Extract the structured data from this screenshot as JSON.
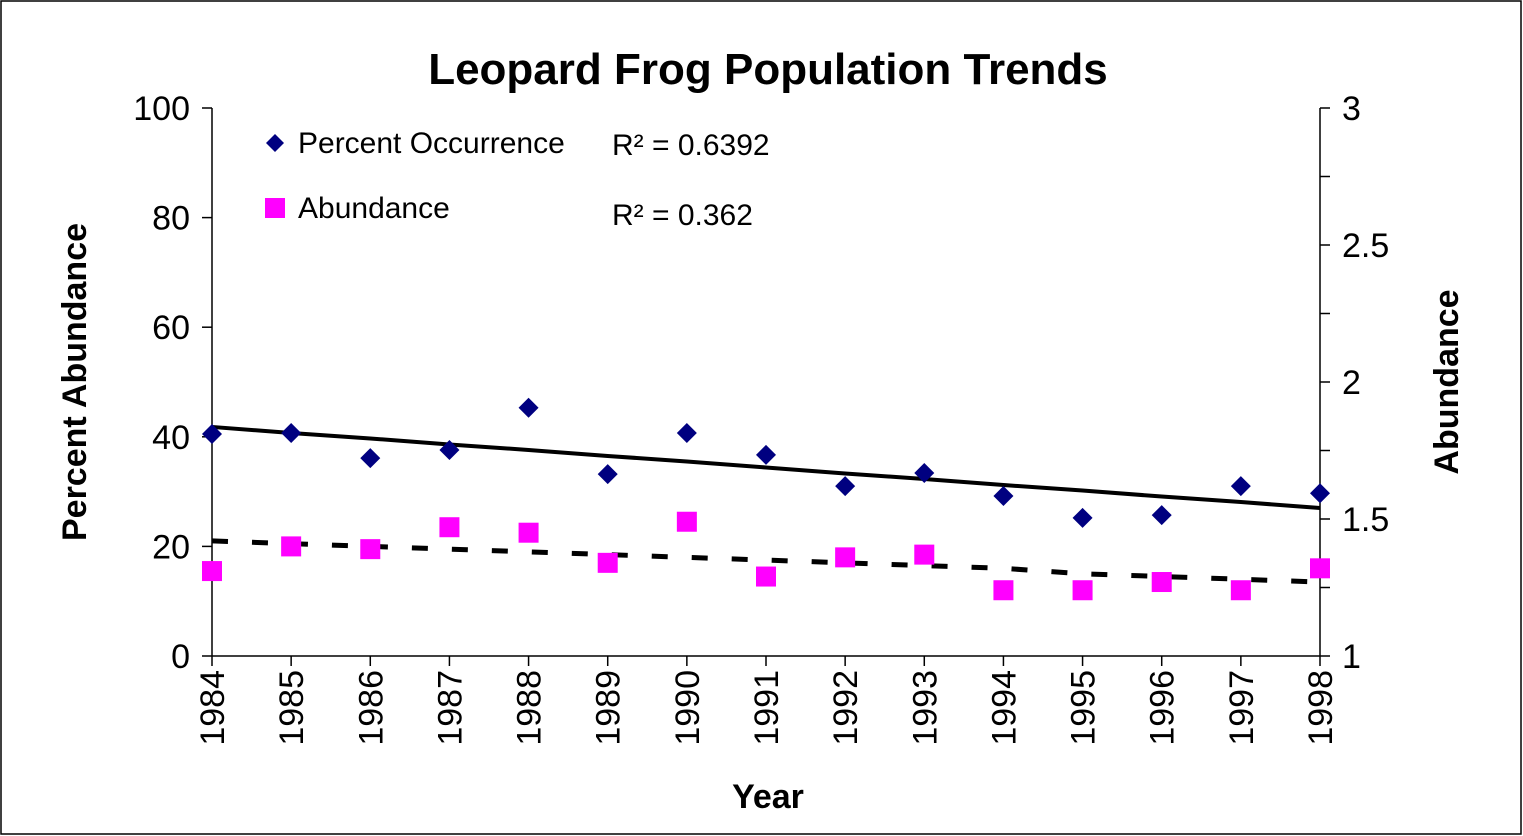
{
  "chart_data": {
    "type": "scatter",
    "title": "Leopard Frog Population Trends",
    "x_label": "Year",
    "y_label": "Percent Abundance",
    "y2_label": "Abundance",
    "categories": [
      "1984",
      "1985",
      "1986",
      "1987",
      "1988",
      "1989",
      "1990",
      "1991",
      "1992",
      "1993",
      "1994",
      "1995",
      "1996",
      "1997",
      "1998"
    ],
    "series": [
      {
        "name": "Percent Occurrence",
        "color": "#000080",
        "marker": "diamond",
        "values": [
          40.5,
          40.7,
          36.1,
          37.6,
          45.3,
          33.2,
          40.7,
          36.7,
          31.0,
          33.4,
          29.2,
          25.2,
          25.7,
          31.0,
          29.7
        ]
      },
      {
        "name": "Abundance",
        "color": "#ff00ff",
        "marker": "square",
        "axis": "y2",
        "values": [
          1.31,
          1.4,
          1.39,
          1.47,
          1.45,
          1.34,
          1.49,
          1.29,
          1.36,
          1.37,
          1.24,
          1.24,
          1.27,
          1.24,
          1.32
        ]
      }
    ],
    "trendlines": [
      {
        "style": "solid",
        "annotation": "R² = 0.6392",
        "values": [
          41.8,
          40.7,
          39.7,
          38.6,
          37.6,
          36.5,
          35.5,
          34.4,
          33.3,
          32.3,
          31.2,
          30.2,
          29.1,
          28.1,
          27.0
        ]
      },
      {
        "style": "dashed",
        "axis": "y2",
        "annotation": "R² = 0.362",
        "values": [
          1.42,
          1.41,
          1.4,
          1.39,
          1.38,
          1.37,
          1.36,
          1.35,
          1.34,
          1.33,
          1.32,
          1.3,
          1.29,
          1.28,
          1.27
        ]
      }
    ],
    "ylim": [
      0,
      100
    ],
    "yticks": [
      0,
      20,
      40,
      60,
      80,
      100
    ],
    "y2lim": [
      1,
      3
    ],
    "y2ticks": [
      1,
      1.5,
      2,
      2.5,
      3
    ],
    "grid": false,
    "legend": "upper left"
  }
}
